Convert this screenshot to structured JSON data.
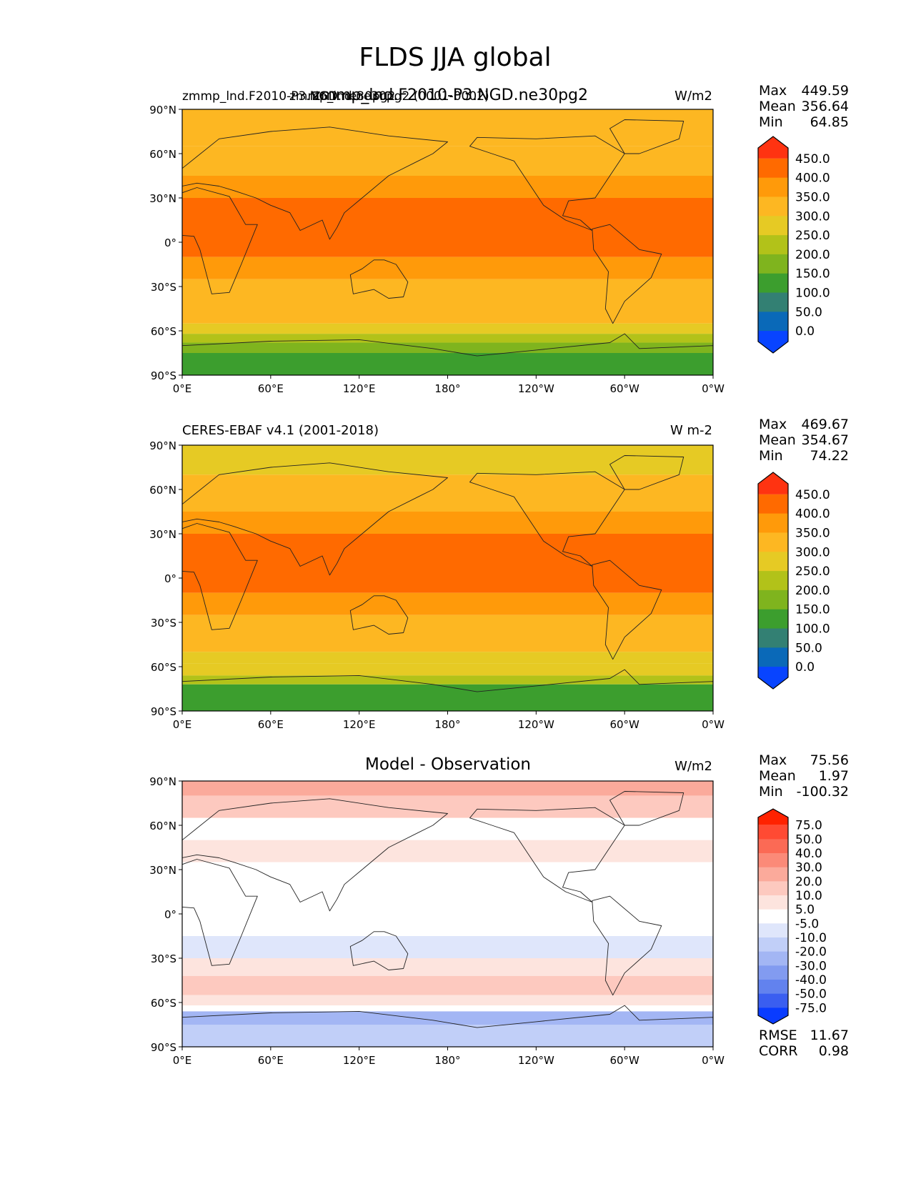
{
  "figure": {
    "title": "FLDS JJA global"
  },
  "chart_data": [
    {
      "type": "heatmap",
      "title_left": "zmmp_lnd.F2010-P3.NGD.ne30pg2",
      "title_left_overlay": "zmmp_lnd.ne30pg2 (0001-0002)",
      "title_center": "zmmp_lnd.F2010-P3.NGD.ne30pg2",
      "units": "W/m2",
      "stats": [
        {
          "label": "Max",
          "value": "449.59"
        },
        {
          "label": "Mean",
          "value": "356.64"
        },
        {
          "label": "Min",
          "value": "64.85"
        }
      ],
      "colorbar": {
        "labels": [
          "450.0",
          "400.0",
          "350.0",
          "300.0",
          "250.0",
          "200.0",
          "150.0",
          "100.0",
          "50.0",
          "0.0"
        ],
        "colors": [
          "#ff3311",
          "#ff6a00",
          "#ff9a0a",
          "#fdb722",
          "#e6ca24",
          "#b2c219",
          "#7fb41e",
          "#3c9e2e",
          "#338073",
          "#0a69b8",
          "#0844ff"
        ]
      },
      "xticks": [
        "0°E",
        "60°E",
        "120°E",
        "180°",
        "120°W",
        "60°W",
        "0°W"
      ],
      "yticks": [
        "90°N",
        "60°N",
        "30°N",
        "0°",
        "30°S",
        "60°S",
        "90°S"
      ],
      "lat_bands": [
        {
          "lat": [
            65,
            90
          ],
          "value": 320
        },
        {
          "lat": [
            45,
            65
          ],
          "value": 330
        },
        {
          "lat": [
            30,
            45
          ],
          "value": 380
        },
        {
          "lat": [
            -10,
            30
          ],
          "value": 410
        },
        {
          "lat": [
            -25,
            -10
          ],
          "value": 370
        },
        {
          "lat": [
            -45,
            -25
          ],
          "value": 330
        },
        {
          "lat": [
            -55,
            -45
          ],
          "value": 300
        },
        {
          "lat": [
            -62,
            -55
          ],
          "value": 270
        },
        {
          "lat": [
            -68,
            -62
          ],
          "value": 240
        },
        {
          "lat": [
            -75,
            -68
          ],
          "value": 160
        },
        {
          "lat": [
            -90,
            -75
          ],
          "value": 120
        }
      ]
    },
    {
      "type": "heatmap",
      "title_left": "CERES-EBAF v4.1 (2001-2018)",
      "units": "W m-2",
      "stats": [
        {
          "label": "Max",
          "value": "469.67"
        },
        {
          "label": "Mean",
          "value": "354.67"
        },
        {
          "label": "Min",
          "value": "74.22"
        }
      ],
      "colorbar": {
        "labels": [
          "450.0",
          "400.0",
          "350.0",
          "300.0",
          "250.0",
          "200.0",
          "150.0",
          "100.0",
          "50.0",
          "0.0"
        ],
        "colors": [
          "#ff3311",
          "#ff6a00",
          "#ff9a0a",
          "#fdb722",
          "#e6ca24",
          "#b2c219",
          "#7fb41e",
          "#3c9e2e",
          "#338073",
          "#0a69b8",
          "#0844ff"
        ]
      },
      "xticks": [
        "0°E",
        "60°E",
        "120°E",
        "180°",
        "120°W",
        "60°W",
        "0°W"
      ],
      "yticks": [
        "90°N",
        "60°N",
        "30°N",
        "0°",
        "30°S",
        "60°S",
        "90°S"
      ],
      "lat_bands": [
        {
          "lat": [
            70,
            90
          ],
          "value": 290
        },
        {
          "lat": [
            45,
            70
          ],
          "value": 330
        },
        {
          "lat": [
            30,
            45
          ],
          "value": 380
        },
        {
          "lat": [
            -10,
            30
          ],
          "value": 410
        },
        {
          "lat": [
            -25,
            -10
          ],
          "value": 370
        },
        {
          "lat": [
            -50,
            -25
          ],
          "value": 330
        },
        {
          "lat": [
            -58,
            -50
          ],
          "value": 290
        },
        {
          "lat": [
            -66,
            -58
          ],
          "value": 250
        },
        {
          "lat": [
            -72,
            -66
          ],
          "value": 210
        },
        {
          "lat": [
            -90,
            -72
          ],
          "value": 130
        }
      ]
    },
    {
      "type": "heatmap",
      "title_center": "Model - Observation",
      "units": "W/m2",
      "stats": [
        {
          "label": "Max",
          "value": "75.56"
        },
        {
          "label": "Mean",
          "value": "1.97"
        },
        {
          "label": "Min",
          "value": "-100.32"
        }
      ],
      "stats_bottom": [
        {
          "label": "RMSE",
          "value": "11.67"
        },
        {
          "label": "CORR",
          "value": "0.98"
        }
      ],
      "colorbar": {
        "labels": [
          "75.0",
          "50.0",
          "40.0",
          "30.0",
          "20.0",
          "10.0",
          "5.0",
          "-5.0",
          "-10.0",
          "-20.0",
          "-30.0",
          "-40.0",
          "-50.0",
          "-75.0"
        ],
        "colors": [
          "#ff2200",
          "#ff4a33",
          "#fb6a55",
          "#fb8a78",
          "#fbaa9b",
          "#fdc9bf",
          "#fde4de",
          "#ffffff",
          "#dfe6fb",
          "#c1cff8",
          "#a3b6f4",
          "#829bf0",
          "#6282ee",
          "#3a5ef0",
          "#0a3cff"
        ]
      },
      "xticks": [
        "0°E",
        "60°E",
        "120°E",
        "180°",
        "120°W",
        "60°W",
        "0°W"
      ],
      "yticks": [
        "90°N",
        "60°N",
        "30°N",
        "0°",
        "30°S",
        "60°S",
        "90°S"
      ],
      "lat_bands": [
        {
          "lat": [
            80,
            90
          ],
          "value": 25
        },
        {
          "lat": [
            65,
            80
          ],
          "value": 12
        },
        {
          "lat": [
            50,
            65
          ],
          "value": 0
        },
        {
          "lat": [
            35,
            50
          ],
          "value": 6
        },
        {
          "lat": [
            10,
            35
          ],
          "value": 0
        },
        {
          "lat": [
            -15,
            10
          ],
          "value": 0
        },
        {
          "lat": [
            -30,
            -15
          ],
          "value": -8
        },
        {
          "lat": [
            -42,
            -30
          ],
          "value": 8
        },
        {
          "lat": [
            -55,
            -42
          ],
          "value": 15
        },
        {
          "lat": [
            -62,
            -55
          ],
          "value": 8
        },
        {
          "lat": [
            -66,
            -62
          ],
          "value": 0
        },
        {
          "lat": [
            -75,
            -66
          ],
          "value": -25
        },
        {
          "lat": [
            -90,
            -75
          ],
          "value": -12
        }
      ]
    }
  ]
}
